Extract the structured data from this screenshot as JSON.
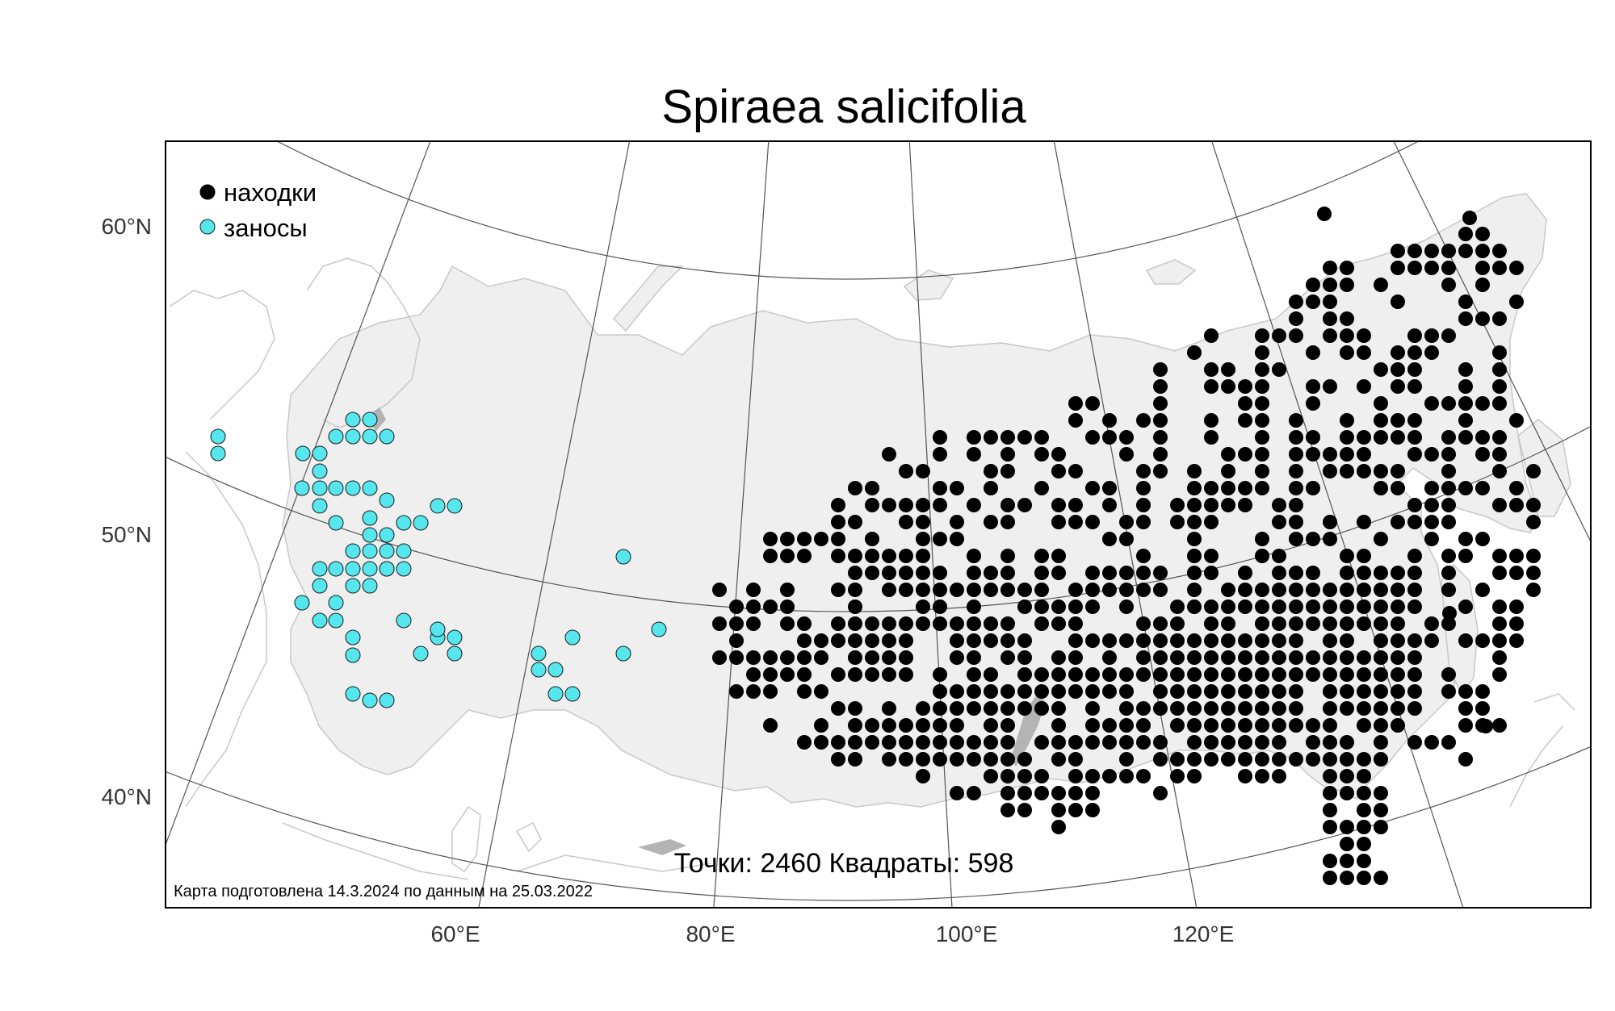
{
  "title": "Spiraea salicifolia",
  "legend": [
    {
      "label": "находки",
      "color": "#000000"
    },
    {
      "label": "заносы",
      "color": "#55e6ee"
    }
  ],
  "stats_text": "Точки: 2460 Квадраты: 598",
  "footnote": "Карта подготовлена 14.3.2024 по данным на 25.03.2022",
  "lat_labels": [
    "60°N",
    "50°N",
    "40°N"
  ],
  "lon_labels": [
    "60°E",
    "80°E",
    "100°E",
    "120°E"
  ],
  "colors": {
    "land": "#efefef",
    "frame": "#000000",
    "graticule": "#555555",
    "finds": "#000000",
    "introductions": "#55e6ee"
  }
}
